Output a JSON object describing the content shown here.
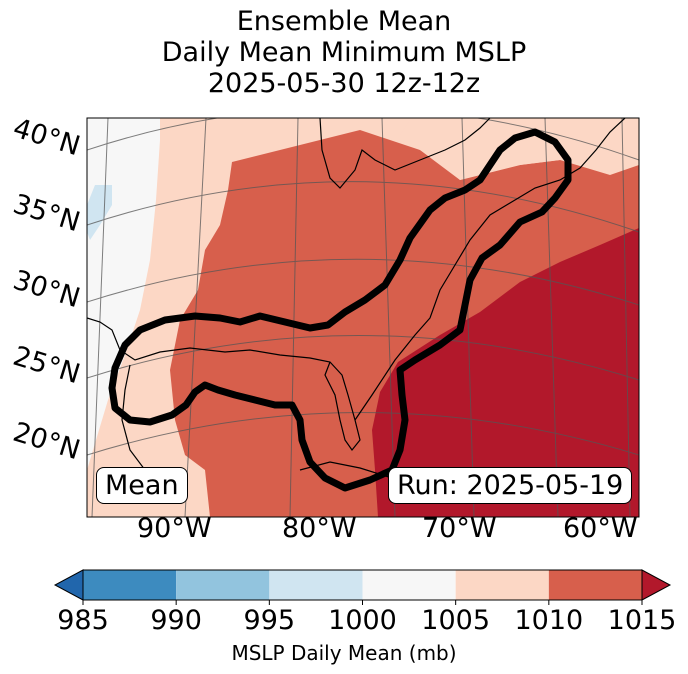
{
  "chart_data": {
    "type": "heatmap",
    "title_lines": [
      "Ensemble Mean",
      "Daily Mean Minimum MSLP",
      "2025-05-30 12z-12z"
    ],
    "lat_labels": [
      "40°N",
      "35°N",
      "30°N",
      "25°N",
      "20°N"
    ],
    "lon_labels": [
      "90°W",
      "80°W",
      "70°W",
      "60°W"
    ],
    "legend_left": "Mean",
    "legend_right": "Run: 2025-05-19",
    "colorbar": {
      "ticks": [
        "985",
        "990",
        "995",
        "1000",
        "1005",
        "1010",
        "1015"
      ],
      "bins": [
        {
          "range": [
            985,
            990
          ],
          "color": "#3d8bbf"
        },
        {
          "range": [
            990,
            995
          ],
          "color": "#92c4de"
        },
        {
          "range": [
            995,
            1000
          ],
          "color": "#d0e5f1"
        },
        {
          "range": [
            1000,
            1005
          ],
          "color": "#f7f7f7"
        },
        {
          "range": [
            1005,
            1010
          ],
          "color": "#fcd7c5"
        },
        {
          "range": [
            1010,
            1015
          ],
          "color": "#d75f4c"
        }
      ],
      "under_color": "#2166ac",
      "over_color": "#b2182b",
      "label": "MSLP Daily Mean (mb)"
    }
  }
}
